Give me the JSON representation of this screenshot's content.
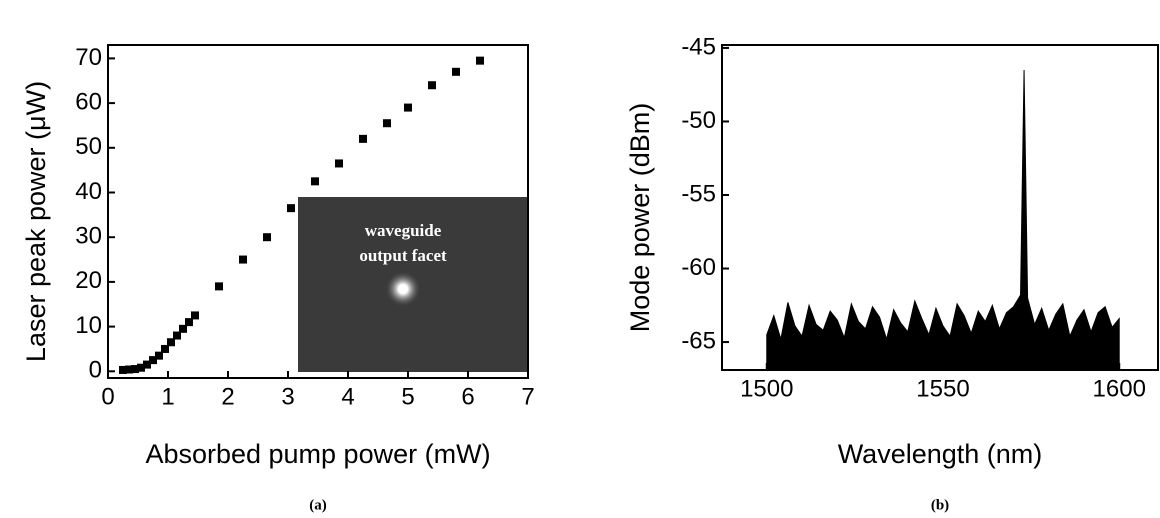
{
  "chart_data": [
    {
      "type": "scatter",
      "x_label": "Absorbed pump power (mW)",
      "y_label": "Laser peak power (μW)",
      "caption": "(a)",
      "annotations": [
        "waveguide",
        "output facet"
      ],
      "color": "#000000",
      "x": [
        0.25,
        0.35,
        0.45,
        0.55,
        0.65,
        0.75,
        0.85,
        0.95,
        1.05,
        1.15,
        1.25,
        1.35,
        1.45,
        1.85,
        2.25,
        2.65,
        3.05,
        3.45,
        3.85,
        4.25,
        4.65,
        5.0,
        5.4,
        5.8,
        6.2
      ],
      "values": [
        0.3,
        0.4,
        0.5,
        0.8,
        1.5,
        2.5,
        3.5,
        5,
        6.5,
        8,
        9.5,
        11,
        12.5,
        19,
        25,
        30,
        36.5,
        42.5,
        46.5,
        52,
        55.5,
        59,
        64,
        67,
        69.5
      ],
      "xlim": [
        0,
        7
      ],
      "ylim": [
        -1.5,
        73
      ],
      "xticks": [
        0,
        1,
        2,
        3,
        4,
        5,
        6,
        7
      ],
      "yticks": [
        0,
        10,
        20,
        30,
        40,
        50,
        60,
        70
      ]
    },
    {
      "type": "area",
      "x_label": "Wavelength (nm)",
      "y_label": "Mode power (dBm)",
      "caption": "(b)",
      "color": "#000000",
      "x": [
        1500,
        1502,
        1504,
        1506,
        1508,
        1510,
        1512,
        1514,
        1516,
        1518,
        1520,
        1522,
        1524,
        1526,
        1528,
        1530,
        1532,
        1534,
        1536,
        1538,
        1540,
        1542,
        1544,
        1546,
        1548,
        1550,
        1552,
        1554,
        1556,
        1558,
        1560,
        1562,
        1564,
        1566,
        1568,
        1570,
        1572,
        1573,
        1574,
        1576,
        1578,
        1580,
        1582,
        1584,
        1586,
        1588,
        1590,
        1592,
        1594,
        1596,
        1598,
        1600
      ],
      "values": [
        -64.5,
        -63.2,
        -64.8,
        -62.3,
        -63.9,
        -64.6,
        -62.5,
        -63.8,
        -64.2,
        -62.9,
        -63.5,
        -64.7,
        -62.4,
        -63.6,
        -64.1,
        -62.6,
        -63.3,
        -64.8,
        -62.8,
        -63.7,
        -64.3,
        -62.2,
        -63.4,
        -64.5,
        -62.7,
        -63.9,
        -64.6,
        -62.4,
        -63.2,
        -64.4,
        -62.9,
        -63.6,
        -62.5,
        -64.1,
        -63.0,
        -62.6,
        -61.8,
        -46.5,
        -62.0,
        -63.8,
        -62.7,
        -64.2,
        -63.1,
        -62.4,
        -64.6,
        -63.5,
        -62.8,
        -64.3,
        -63.0,
        -62.6,
        -64.0,
        -63.4
      ],
      "xlim": [
        1487.3,
        1611
      ],
      "ylim": [
        -66.9,
        -44.8
      ],
      "xticks": [
        1500,
        1550,
        1600
      ],
      "yticks": [
        -65,
        -60,
        -55,
        -50,
        -45
      ]
    }
  ]
}
